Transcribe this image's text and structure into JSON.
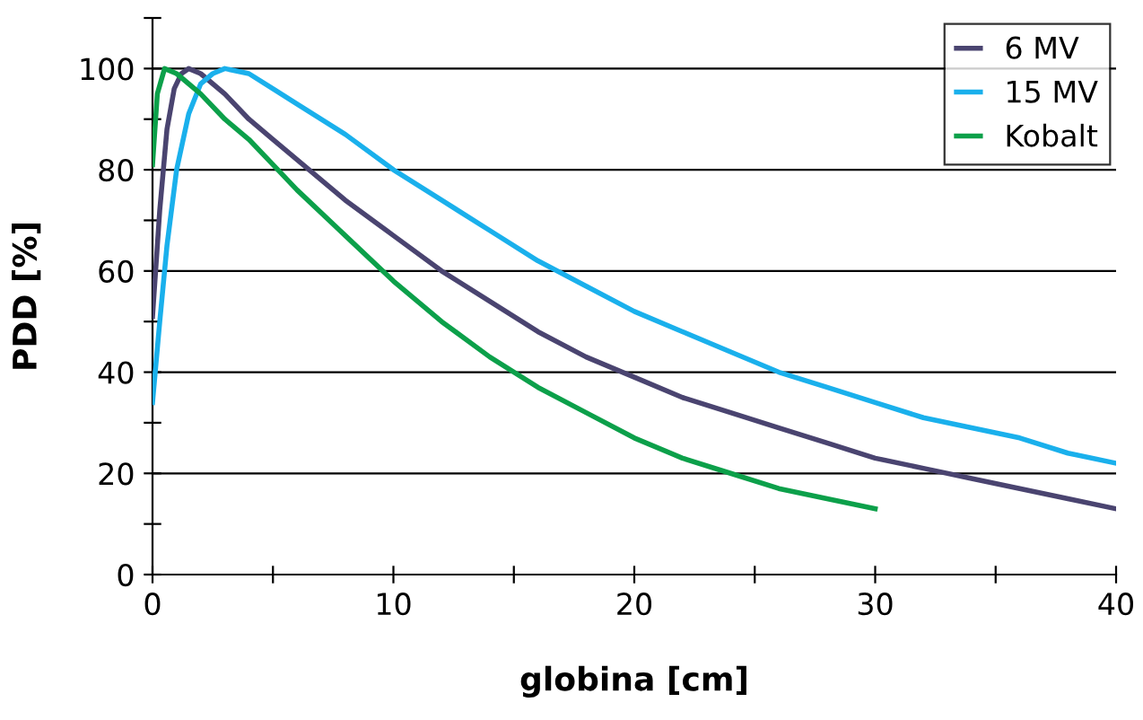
{
  "chart_data": {
    "type": "line",
    "xlabel": "globina [cm]",
    "ylabel": "PDD [%]",
    "xlim": [
      0,
      40
    ],
    "ylim": [
      0,
      110
    ],
    "xticks": [
      0,
      {
        "value": 5,
        "label": null
      },
      10,
      {
        "value": 15,
        "label": null
      },
      20,
      {
        "value": 25,
        "label": null
      },
      30,
      {
        "value": 35,
        "label": null
      },
      40
    ],
    "yticks": [
      0,
      {
        "value": 10,
        "label": null
      },
      20,
      {
        "value": 30,
        "label": null
      },
      40,
      {
        "value": 50,
        "label": null
      },
      60,
      {
        "value": 70,
        "label": null
      },
      80,
      {
        "value": 90,
        "label": null
      },
      100,
      {
        "value": 110,
        "label": null
      }
    ],
    "grid": "y",
    "legend": "top right",
    "marker": "none",
    "line_style": "solid",
    "series": [
      {
        "name": "6 MV",
        "color": "#4a4470",
        "x": [
          0,
          0.3,
          0.6,
          0.9,
          1.2,
          1.5,
          2,
          3,
          4,
          5,
          6,
          8,
          10,
          12,
          14,
          16,
          18,
          20,
          22,
          24,
          26,
          28,
          30,
          32,
          34,
          36,
          38,
          40
        ],
        "values": [
          51,
          72,
          88,
          96,
          99,
          100,
          99,
          95,
          90,
          86,
          82,
          74,
          67,
          60,
          54,
          48,
          43,
          39,
          35,
          32,
          29,
          26,
          23,
          21,
          19,
          17,
          15,
          13
        ]
      },
      {
        "name": "15 MV",
        "color": "#1ab0ec",
        "x": [
          0,
          0.3,
          0.6,
          1,
          1.5,
          2,
          2.5,
          3,
          4,
          5,
          6,
          8,
          10,
          12,
          14,
          16,
          18,
          20,
          22,
          24,
          26,
          28,
          30,
          32,
          34,
          36,
          38,
          40
        ],
        "values": [
          34,
          50,
          65,
          80,
          91,
          97,
          99,
          100,
          99,
          96,
          93,
          87,
          80,
          74,
          68,
          62,
          57,
          52,
          48,
          44,
          40,
          37,
          34,
          31,
          29,
          27,
          24,
          22
        ]
      },
      {
        "name": "Kobalt",
        "color": "#0ca04a",
        "x": [
          0,
          0.2,
          0.5,
          1,
          2,
          3,
          4,
          5,
          6,
          8,
          10,
          12,
          14,
          16,
          18,
          20,
          22,
          24,
          26,
          28,
          30
        ],
        "values": [
          81,
          95,
          100,
          99,
          95,
          90,
          86,
          81,
          76,
          67,
          58,
          50,
          43,
          37,
          32,
          27,
          23,
          20,
          17,
          15,
          13
        ]
      }
    ]
  }
}
